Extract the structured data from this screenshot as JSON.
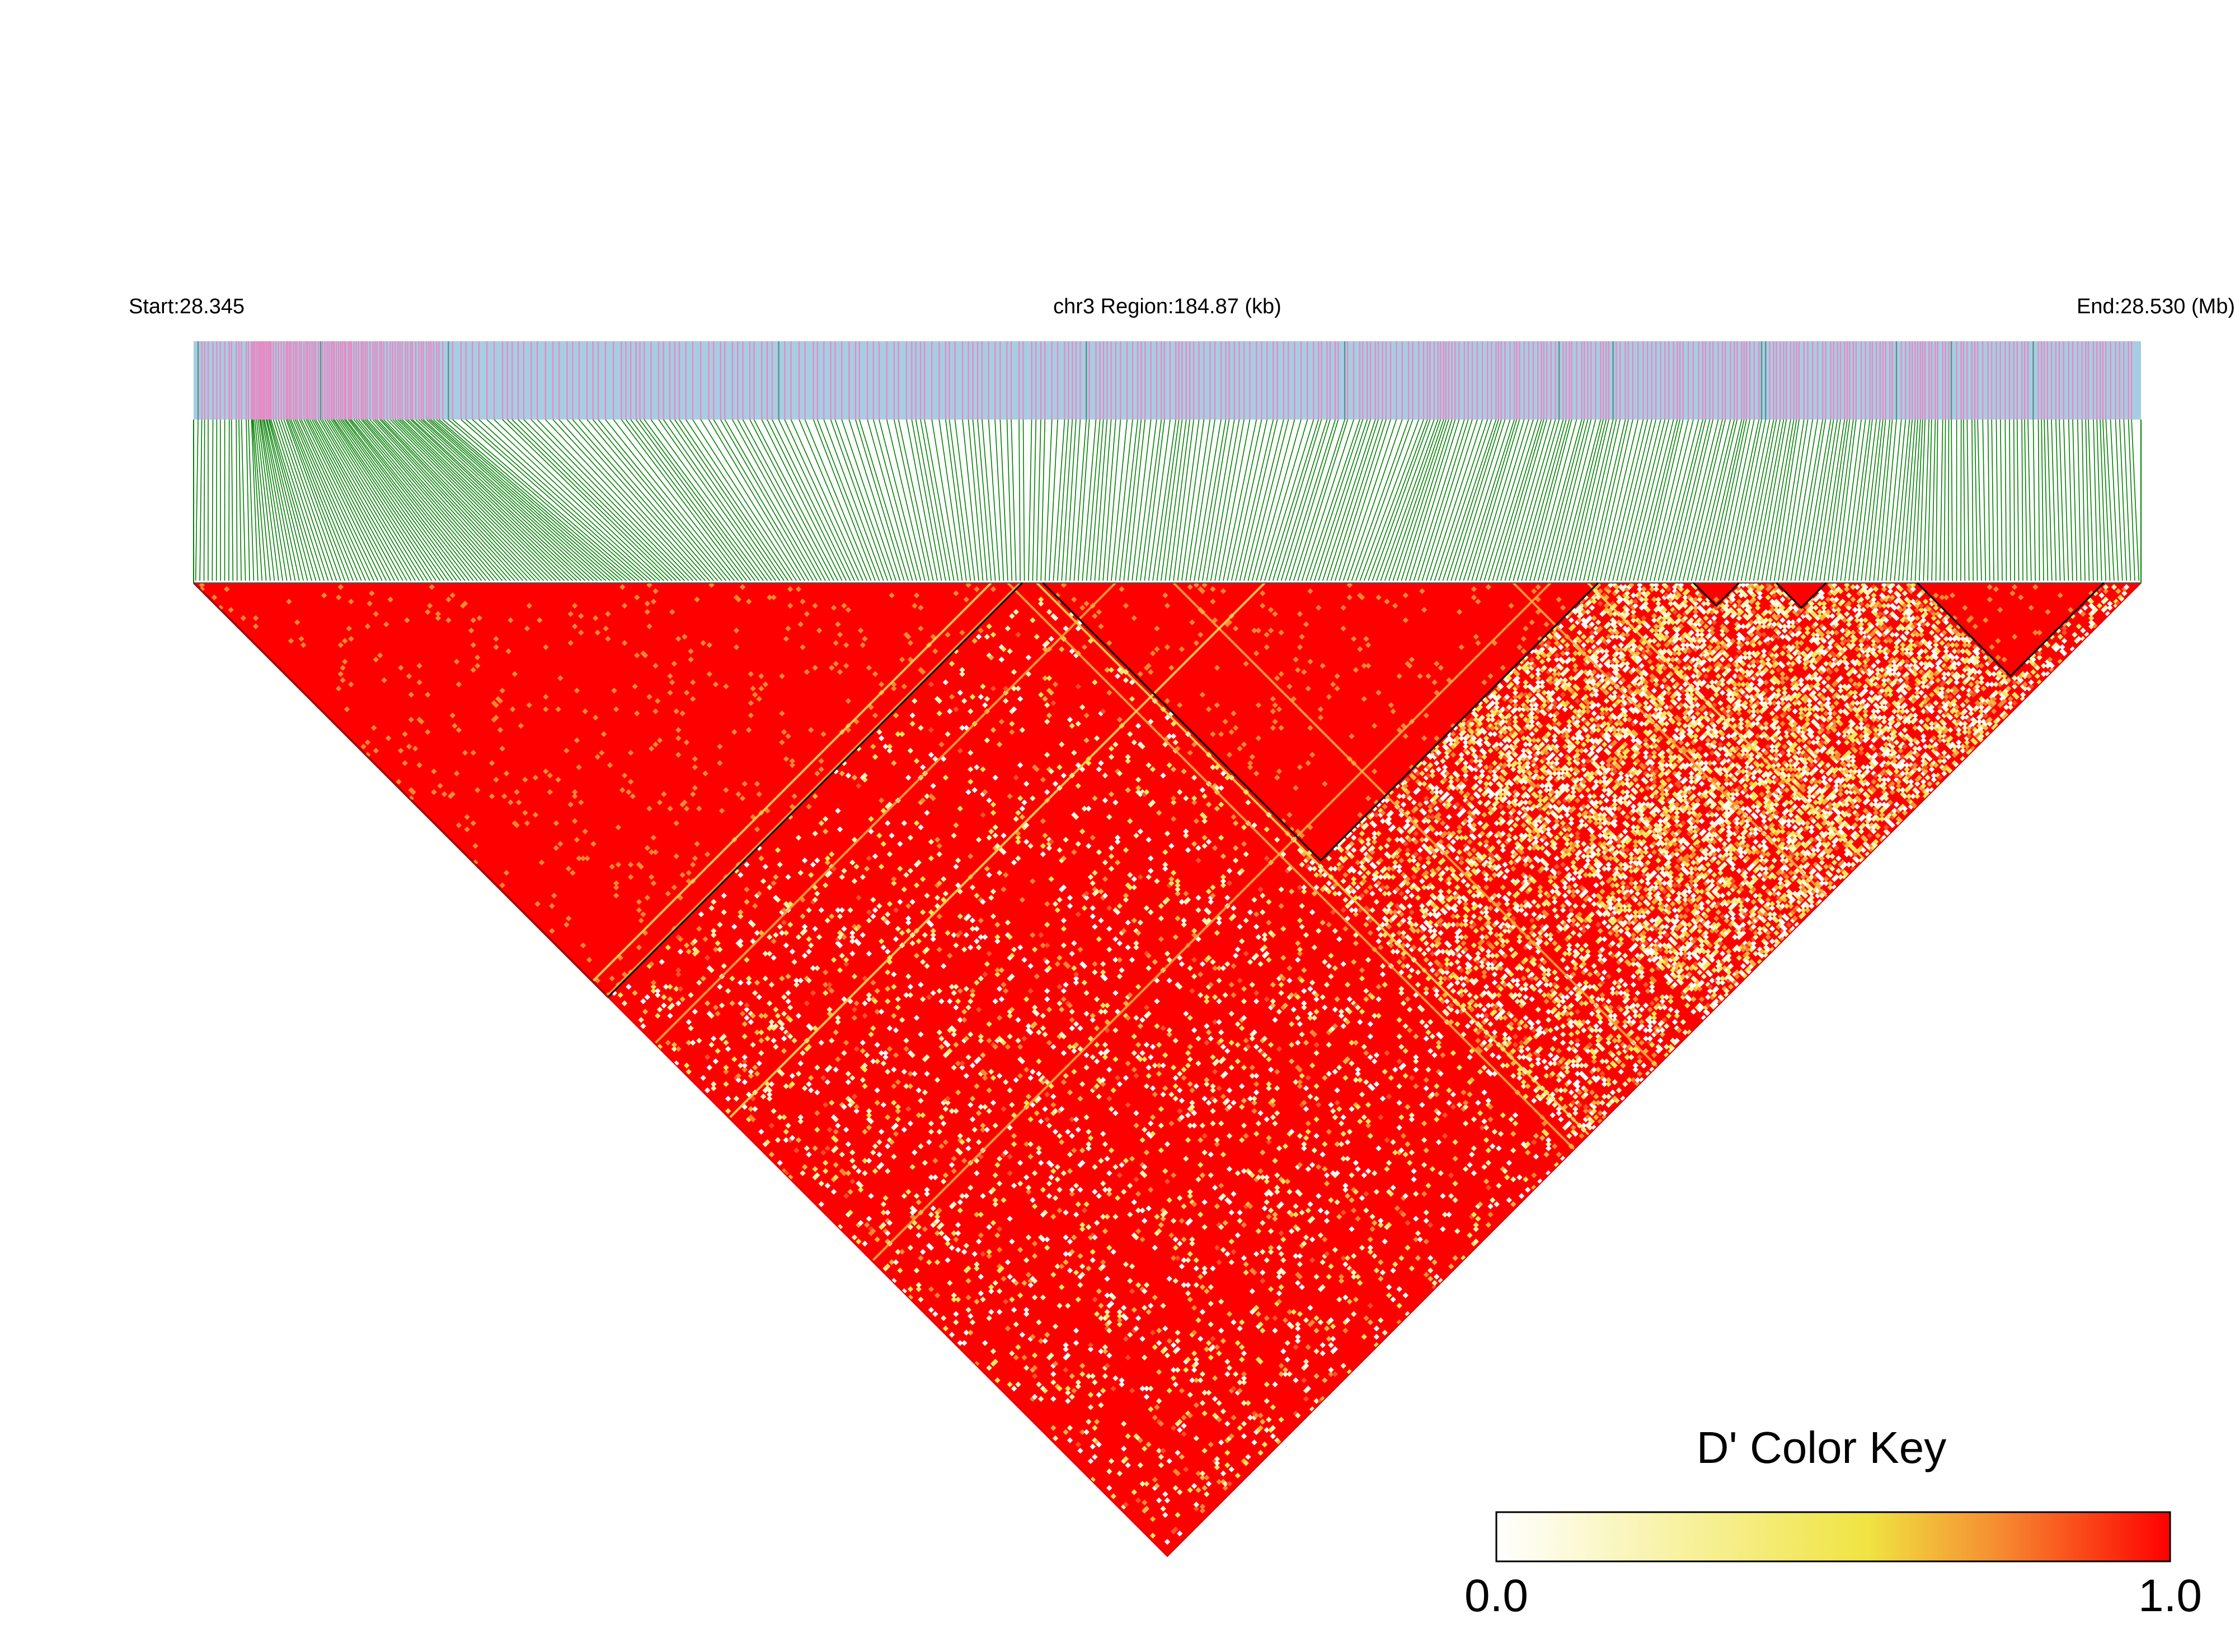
{
  "chart_data": {
    "type": "heatmap",
    "subtype": "linkage-disequilibrium-triangle",
    "statistic": "D'",
    "header": {
      "start_label": "Start:28.345",
      "region_label": "chr3 Region:184.87 (kb)",
      "end_label": "End:28.530 (Mb)"
    },
    "region": {
      "chrom": "chr3",
      "start_mb": 28.345,
      "end_mb": 28.53,
      "length_kb": 184.87
    },
    "colors": {
      "track_bg": "#a6cee3",
      "snp_tick": "#e78ac3",
      "dense_tick": "#5f8f8a",
      "connector": "#008000",
      "block_outline": "#000000",
      "high": "#ff0000",
      "mid": "#f0e442",
      "low": "#ffffff"
    },
    "ld_blocks_snp_index": [
      [
        0,
        199
      ],
      [
        205,
        338
      ],
      [
        362,
        372
      ],
      [
        382,
        393
      ],
      [
        416,
        460
      ]
    ],
    "legend": {
      "title": "D' Color Key",
      "min_label": "0.0",
      "max_label": "1.0",
      "min": 0.0,
      "max": 1.0,
      "gradient": [
        "#ffffff",
        "#f0e442",
        "#ff0000"
      ]
    }
  }
}
